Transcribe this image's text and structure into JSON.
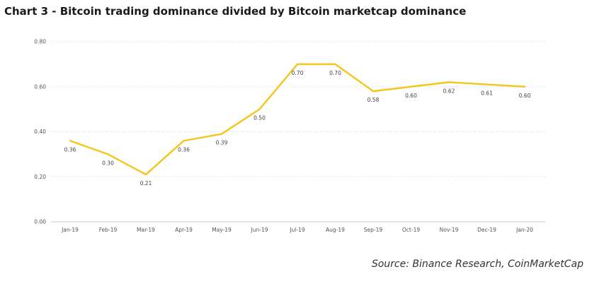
{
  "title": "Chart 3 - Bitcoin trading dominance divided by Bitcoin marketcap dominance",
  "source": "Source: Binance Research, CoinMarketCap",
  "colors": {
    "line": "#F5C51A",
    "grid": "#e6e6e6",
    "axis": "#cccccc"
  },
  "chart_data": {
    "type": "line",
    "categories": [
      "Jan-19",
      "Feb-19",
      "Mar-19",
      "Apr-19",
      "May-19",
      "Jun-19",
      "Jul-19",
      "Aug-19",
      "Sep-19",
      "Oct-19",
      "Nov-19",
      "Dec-19",
      "Jan-20"
    ],
    "values": [
      0.36,
      0.3,
      0.21,
      0.36,
      0.39,
      0.5,
      0.7,
      0.7,
      0.58,
      0.6,
      0.62,
      0.61,
      0.6
    ],
    "value_labels": [
      "0.36",
      "0.30",
      "0.21",
      "0.36",
      "0.39",
      "0.50",
      "0.70",
      "0.70",
      "0.58",
      "0.60",
      "0.62",
      "0.61",
      "0.60"
    ],
    "y_ticks": [
      "0.00",
      "0.20",
      "0.40",
      "0.60",
      "0.80"
    ],
    "ylim": [
      0,
      0.8
    ],
    "grid": true,
    "legend": "none",
    "xlabel": "",
    "ylabel": ""
  }
}
